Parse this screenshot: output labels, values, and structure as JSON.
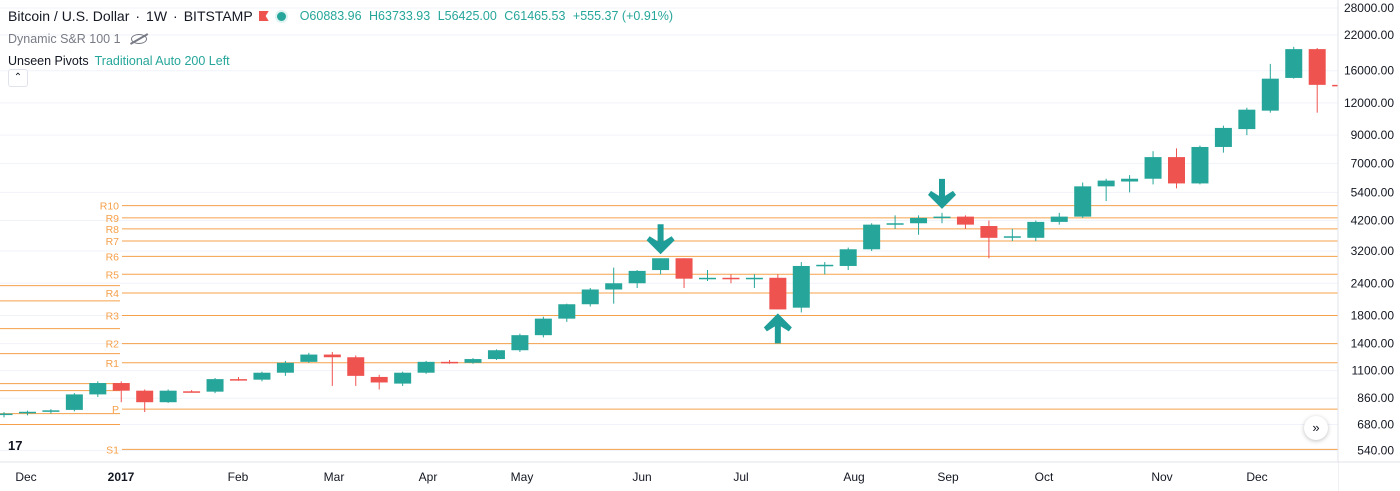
{
  "header": {
    "symbol": "Bitcoin / U.S. Dollar",
    "interval": "1W",
    "exchange": "BITSTAMP",
    "open": "O60883.96",
    "high": "H63733.93",
    "low": "L56425.00",
    "close": "C61465.53",
    "change": "+555.37 (+0.91%)"
  },
  "indicators": {
    "dsr": "Dynamic S&R 100 1",
    "pivots_name": "Unseen Pivots",
    "pivots_params": "Traditional Auto 200 Left"
  },
  "colors": {
    "up": "#26a69a",
    "down": "#ef5350",
    "pivot": "#f5a04a",
    "arrow": "#1f9e99"
  },
  "chart_data": {
    "type": "candlestick",
    "scale": "log",
    "ylim": [
      500,
      28000
    ],
    "y_ticks": [
      "28000.00",
      "22000.00",
      "16000.00",
      "12000.00",
      "9000.00",
      "7000.00",
      "5400.00",
      "4200.00",
      "3200.00",
      "2400.00",
      "1800.00",
      "1400.00",
      "1100.00",
      "860.00",
      "680.00",
      "540.00"
    ],
    "x_ticks": [
      "Dec",
      "2017",
      "Feb",
      "Mar",
      "Apr",
      "May",
      "Jun",
      "Jul",
      "Aug",
      "Sep",
      "Oct",
      "Nov",
      "Dec"
    ],
    "pivot_levels": [
      {
        "label": "R10",
        "value": 4800
      },
      {
        "label": "R9",
        "value": 4300
      },
      {
        "label": "R8",
        "value": 3900
      },
      {
        "label": "R7",
        "value": 3500
      },
      {
        "label": "R6",
        "value": 3050
      },
      {
        "label": "R5",
        "value": 2600
      },
      {
        "label": "R4",
        "value": 2200
      },
      {
        "label": "R3",
        "value": 1800
      },
      {
        "label": "R2",
        "value": 1400
      },
      {
        "label": "R1",
        "value": 1180
      },
      {
        "label": "P",
        "value": 780
      },
      {
        "label": "S1",
        "value": 545
      }
    ],
    "unlabeled_left_lines": [
      2350,
      2050,
      1600,
      1280,
      980,
      920,
      750,
      680
    ],
    "candles": [
      {
        "o": 740,
        "h": 760,
        "l": 725,
        "c": 750
      },
      {
        "o": 752,
        "h": 770,
        "l": 738,
        "c": 762
      },
      {
        "o": 762,
        "h": 780,
        "l": 750,
        "c": 772
      },
      {
        "o": 775,
        "h": 900,
        "l": 765,
        "c": 890
      },
      {
        "o": 890,
        "h": 1000,
        "l": 870,
        "c": 985
      },
      {
        "o": 985,
        "h": 1000,
        "l": 830,
        "c": 920
      },
      {
        "o": 920,
        "h": 930,
        "l": 760,
        "c": 830
      },
      {
        "o": 830,
        "h": 930,
        "l": 825,
        "c": 920
      },
      {
        "o": 915,
        "h": 925,
        "l": 905,
        "c": 912
      },
      {
        "o": 912,
        "h": 1030,
        "l": 900,
        "c": 1020
      },
      {
        "o": 1020,
        "h": 1040,
        "l": 1005,
        "c": 1015
      },
      {
        "o": 1015,
        "h": 1090,
        "l": 1000,
        "c": 1080
      },
      {
        "o": 1080,
        "h": 1200,
        "l": 1050,
        "c": 1180
      },
      {
        "o": 1190,
        "h": 1290,
        "l": 1180,
        "c": 1270
      },
      {
        "o": 1270,
        "h": 1300,
        "l": 960,
        "c": 1240
      },
      {
        "o": 1240,
        "h": 1260,
        "l": 960,
        "c": 1050
      },
      {
        "o": 1040,
        "h": 1060,
        "l": 930,
        "c": 990
      },
      {
        "o": 980,
        "h": 1090,
        "l": 960,
        "c": 1080
      },
      {
        "o": 1080,
        "h": 1200,
        "l": 1070,
        "c": 1190
      },
      {
        "o": 1190,
        "h": 1210,
        "l": 1170,
        "c": 1180
      },
      {
        "o": 1180,
        "h": 1230,
        "l": 1170,
        "c": 1220
      },
      {
        "o": 1220,
        "h": 1330,
        "l": 1210,
        "c": 1320
      },
      {
        "o": 1320,
        "h": 1530,
        "l": 1300,
        "c": 1510
      },
      {
        "o": 1510,
        "h": 1780,
        "l": 1480,
        "c": 1750
      },
      {
        "o": 1750,
        "h": 2000,
        "l": 1700,
        "c": 1990
      },
      {
        "o": 1990,
        "h": 2300,
        "l": 1950,
        "c": 2270
      },
      {
        "o": 2270,
        "h": 2760,
        "l": 2000,
        "c": 2400
      },
      {
        "o": 2400,
        "h": 2700,
        "l": 2300,
        "c": 2680
      },
      {
        "o": 2700,
        "h": 3000,
        "l": 2600,
        "c": 3000
      },
      {
        "o": 3000,
        "h": 3000,
        "l": 2300,
        "c": 2500
      },
      {
        "o": 2500,
        "h": 2700,
        "l": 2450,
        "c": 2520
      },
      {
        "o": 2520,
        "h": 2600,
        "l": 2400,
        "c": 2500
      },
      {
        "o": 2500,
        "h": 2600,
        "l": 2300,
        "c": 2520
      },
      {
        "o": 2520,
        "h": 2600,
        "l": 1900,
        "c": 1900
      },
      {
        "o": 1930,
        "h": 2900,
        "l": 1850,
        "c": 2800
      },
      {
        "o": 2800,
        "h": 2900,
        "l": 2600,
        "c": 2830
      },
      {
        "o": 2800,
        "h": 3300,
        "l": 2700,
        "c": 3250
      },
      {
        "o": 3250,
        "h": 4100,
        "l": 3200,
        "c": 4050
      },
      {
        "o": 4050,
        "h": 4400,
        "l": 3900,
        "c": 4100
      },
      {
        "o": 4100,
        "h": 4400,
        "l": 3700,
        "c": 4300
      },
      {
        "o": 4300,
        "h": 4500,
        "l": 4100,
        "c": 4350
      },
      {
        "o": 4350,
        "h": 4400,
        "l": 3900,
        "c": 4050
      },
      {
        "o": 4000,
        "h": 4200,
        "l": 3000,
        "c": 3600
      },
      {
        "o": 3620,
        "h": 3900,
        "l": 3500,
        "c": 3650
      },
      {
        "o": 3600,
        "h": 4200,
        "l": 3500,
        "c": 4150
      },
      {
        "o": 4150,
        "h": 4500,
        "l": 4050,
        "c": 4350
      },
      {
        "o": 4350,
        "h": 5900,
        "l": 4300,
        "c": 5700
      },
      {
        "o": 5700,
        "h": 6100,
        "l": 5000,
        "c": 6000
      },
      {
        "o": 5950,
        "h": 6300,
        "l": 5400,
        "c": 6100
      },
      {
        "o": 6100,
        "h": 7800,
        "l": 5800,
        "c": 7400
      },
      {
        "o": 7400,
        "h": 8000,
        "l": 5600,
        "c": 5850
      },
      {
        "o": 5850,
        "h": 8200,
        "l": 5800,
        "c": 8100
      },
      {
        "o": 8100,
        "h": 9800,
        "l": 7700,
        "c": 9600
      },
      {
        "o": 9500,
        "h": 11500,
        "l": 9000,
        "c": 11300
      },
      {
        "o": 11200,
        "h": 17000,
        "l": 11000,
        "c": 14900
      },
      {
        "o": 15000,
        "h": 19800,
        "l": 14900,
        "c": 19400
      },
      {
        "o": 19400,
        "h": 19600,
        "l": 11000,
        "c": 14100
      },
      {
        "o": 14100,
        "h": 16500,
        "l": 12000,
        "c": 14000
      }
    ],
    "markers": [
      {
        "dir": "down",
        "candle": 28
      },
      {
        "dir": "up",
        "candle": 33
      },
      {
        "dir": "down",
        "candle": 40
      }
    ]
  }
}
